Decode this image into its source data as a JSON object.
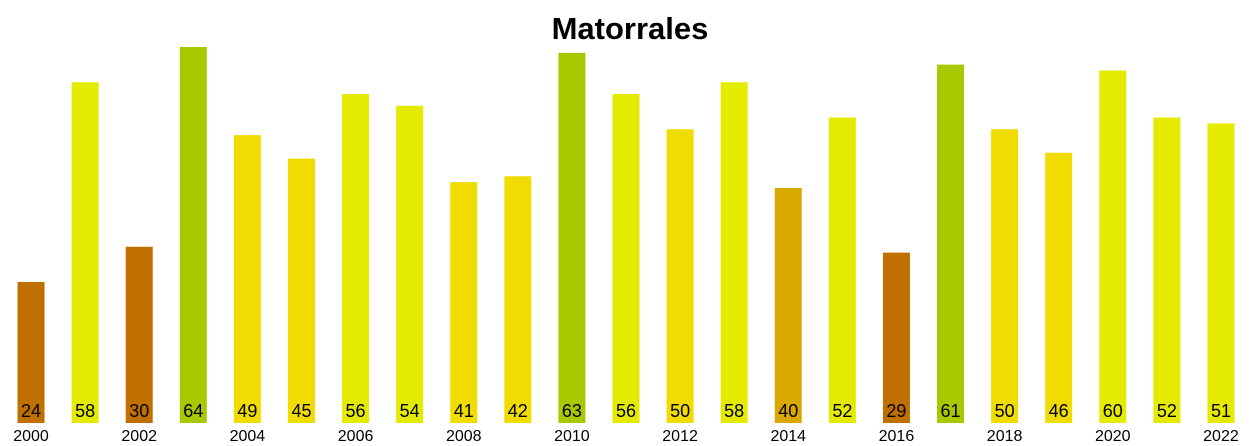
{
  "chart_data": {
    "type": "bar",
    "title": "Matorrales",
    "categories": [
      "2000",
      null,
      "2002",
      null,
      "2004",
      null,
      "2006",
      null,
      "2008",
      null,
      "2010",
      null,
      "2012",
      null,
      "2014",
      null,
      "2016",
      null,
      "2018",
      null,
      "2020",
      null,
      "2022"
    ],
    "values": [
      24,
      58,
      30,
      64,
      49,
      45,
      56,
      54,
      41,
      42,
      63,
      56,
      50,
      58,
      40,
      52,
      29,
      61,
      50,
      46,
      60,
      52,
      51
    ],
    "colors": [
      "#c07000",
      "#e4ea00",
      "#c07000",
      "#a8c800",
      "#f0dc00",
      "#f0dc00",
      "#e4ea00",
      "#e4ea00",
      "#f0dc00",
      "#f0dc00",
      "#a8c800",
      "#e4ea00",
      "#f0dc00",
      "#e4ea00",
      "#d8a800",
      "#e4ea00",
      "#c07000",
      "#a8c800",
      "#f0dc00",
      "#f0dc00",
      "#e4ea00",
      "#e4ea00",
      "#e4ea00"
    ]
  }
}
